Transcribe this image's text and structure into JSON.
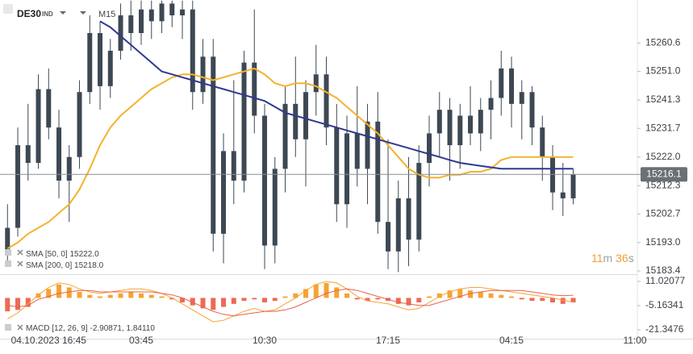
{
  "chart_data": [
    {
      "type": "candlestick",
      "symbol": "DE30",
      "symbol_tag": "IND",
      "timeframe": "M15",
      "categories": [
        null,
        null,
        null,
        null,
        "04.10.2023 16:45",
        null,
        null,
        null,
        null,
        null,
        null,
        null,
        null,
        "03:45",
        null,
        null,
        null,
        null,
        null,
        null,
        null,
        null,
        null,
        null,
        null,
        "10:30",
        null,
        null,
        null,
        null,
        null,
        null,
        null,
        null,
        null,
        null,
        null,
        "17:15",
        null,
        null,
        null,
        null,
        null,
        null,
        null,
        null,
        null,
        null,
        null,
        "04:15",
        null,
        null,
        null,
        null,
        null,
        null,
        null,
        null,
        null,
        null,
        null,
        "11:00"
      ],
      "open": [
        15190,
        15198,
        15226,
        15220,
        15245,
        15232,
        15214,
        15222,
        15244,
        15264,
        15246,
        15258,
        15270,
        15264,
        15272,
        15268,
        15274,
        15270,
        15272,
        15244,
        15256,
        15196,
        15224,
        15214,
        15254,
        15236,
        15192,
        15218,
        15240,
        15228,
        15244,
        15250,
        15232,
        15206,
        15230,
        15218,
        15234,
        15200,
        15190,
        15208,
        15194,
        15220,
        15230,
        15238,
        15226,
        15236,
        15230,
        15238,
        15242,
        15252,
        15240,
        15244,
        15232,
        15222,
        15210,
        15208,
        null,
        null,
        null,
        null,
        null,
        null
      ],
      "high": [
        15206,
        15232,
        15240,
        15250,
        15252,
        15238,
        15226,
        15248,
        15270,
        15268,
        15262,
        15274,
        15275,
        15275,
        15275,
        15275,
        15275,
        15275,
        15275,
        15262,
        15262,
        15230,
        15248,
        15258,
        15272,
        15240,
        15222,
        15246,
        15256,
        15248,
        15260,
        15256,
        15240,
        15236,
        15246,
        15240,
        15244,
        15228,
        15214,
        15222,
        15226,
        15236,
        15244,
        15242,
        15240,
        15246,
        15242,
        15248,
        15258,
        15256,
        15248,
        15246,
        15236,
        15226,
        15220,
        15218,
        null,
        null,
        null,
        null,
        null,
        null
      ],
      "low": [
        15185,
        15195,
        15214,
        15218,
        15228,
        15208,
        15200,
        15218,
        15240,
        15238,
        15242,
        15255,
        15258,
        15260,
        15262,
        15264,
        15266,
        15262,
        15238,
        15240,
        15190,
        15186,
        15206,
        15210,
        15230,
        15184,
        15186,
        15210,
        15222,
        15212,
        15236,
        15226,
        15200,
        15198,
        15212,
        15206,
        15196,
        15184,
        15183,
        15185,
        15190,
        15212,
        15222,
        15214,
        15218,
        15226,
        15224,
        15228,
        15236,
        15232,
        15228,
        15226,
        15214,
        15204,
        15202,
        15206,
        null,
        null,
        null,
        null,
        null,
        null
      ],
      "close": [
        15198,
        15226,
        15220,
        15245,
        15232,
        15214,
        15222,
        15244,
        15264,
        15246,
        15258,
        15270,
        15264,
        15272,
        15268,
        15274,
        15270,
        15272,
        15244,
        15256,
        15196,
        15224,
        15214,
        15254,
        15236,
        15192,
        15218,
        15240,
        15228,
        15244,
        15250,
        15232,
        15206,
        15230,
        15218,
        15234,
        15200,
        15190,
        15208,
        15194,
        15220,
        15230,
        15238,
        15226,
        15236,
        15230,
        15238,
        15242,
        15252,
        15240,
        15244,
        15232,
        15222,
        15210,
        15208,
        15216.1,
        null,
        null,
        null,
        null,
        null,
        null
      ],
      "color": "#3d4853",
      "series": [
        {
          "name": "SMA [50, 0]",
          "last_label": "15222.0",
          "color": "#f2b32e",
          "values": [
            15191,
            15193,
            15196,
            15198,
            15200,
            15203,
            15206,
            15211,
            15218,
            15226,
            15232,
            15236,
            15239,
            15242,
            15245,
            15247,
            15249,
            15250,
            15250,
            15249,
            15248,
            15249,
            15250,
            15251,
            15252,
            15250,
            15247,
            15246,
            15247,
            15247,
            15246,
            15244,
            15242,
            15239,
            15236,
            15233,
            15230,
            15226,
            15222,
            15218,
            15216,
            15215,
            15215,
            15216,
            15216,
            15217,
            15217,
            15218,
            15221,
            15222,
            15222,
            15222,
            15222,
            15222,
            15222,
            15222,
            null,
            null,
            null,
            null,
            null,
            null
          ]
        },
        {
          "name": "SMA [200, 0]",
          "last_label": "15218.0",
          "color": "#2f3990",
          "values": [
            null,
            null,
            null,
            null,
            null,
            null,
            null,
            null,
            null,
            15268,
            15266,
            15263,
            15260,
            15257,
            15254,
            15251,
            15250,
            15249,
            15248,
            15247,
            15246,
            15245,
            15244,
            15243,
            15242,
            15241,
            15239,
            15237,
            15236,
            15235,
            15234,
            15233,
            15232,
            15231,
            15230,
            15229,
            15228,
            15227,
            15226,
            15225,
            15224,
            15223,
            15222,
            15221,
            15220,
            15219.5,
            15219,
            15218.5,
            15218,
            15218,
            15218,
            15218,
            15218,
            15218,
            15218,
            15218,
            null,
            null,
            null,
            null,
            null,
            null
          ]
        }
      ],
      "current_price": 15216.1,
      "ylim": [
        15182.3,
        15275.2
      ],
      "yticks": [
        {
          "value": 15183.4,
          "label": "15183.4"
        },
        {
          "value": 15193,
          "label": "15193.0"
        },
        15202.7,
        15212.3,
        {
          "value": 15222,
          "label": "15222.0"
        },
        15231.7,
        15241.3,
        {
          "value": 15251,
          "label": "15251.0"
        },
        15260.6
      ],
      "countdown": {
        "minutes": "11",
        "minutes_unit": "m",
        "seconds": "36",
        "seconds_unit": "s"
      }
    },
    {
      "type": "macd",
      "title": "MACD [12, 26, 9]",
      "legend_values": "-2.90871, 1.84110",
      "colors": {
        "positive": "#f5a331",
        "negative": "#ec6a55"
      },
      "histogram": [
        -9,
        -8,
        -6,
        3,
        6,
        9,
        7,
        4,
        2,
        1,
        2,
        3,
        4,
        3,
        2,
        1,
        -1,
        -3,
        -5,
        -7,
        -8,
        -6,
        -4,
        -2,
        -1,
        -3,
        -2,
        1,
        3,
        6,
        9,
        10,
        7,
        3,
        -1,
        -2,
        -1,
        -2,
        -4,
        -5,
        -3,
        1,
        3,
        5,
        6,
        5,
        4,
        3,
        2,
        1,
        -1,
        -2,
        -2,
        -3,
        -4,
        -3,
        null,
        null,
        null,
        null,
        null,
        null
      ],
      "series": [
        {
          "name": "MACD",
          "color": "#f5a331",
          "values": [
            -14,
            -10,
            -4,
            2,
            7,
            10,
            9,
            6,
            4,
            3,
            4,
            5,
            6,
            6,
            5,
            3,
            0,
            -4,
            -8,
            -12,
            -16,
            -15,
            -12,
            -9,
            -7,
            -9,
            -8,
            -4,
            0,
            5,
            9,
            11,
            10,
            6,
            1,
            -2,
            -3,
            -4,
            -6,
            -8,
            -7,
            -3,
            1,
            4,
            6,
            7,
            7,
            6,
            5,
            4,
            3,
            2,
            1,
            0,
            -1.5,
            -2.9,
            null,
            null,
            null,
            null,
            null,
            null
          ]
        },
        {
          "name": "Signal",
          "color": "#e8604c",
          "values": [
            -5,
            -6,
            -5,
            -1,
            1,
            3,
            4,
            5,
            5,
            4,
            4,
            4,
            4,
            4,
            4,
            3,
            2,
            0,
            -3,
            -6,
            -9,
            -11,
            -12,
            -11,
            -10,
            -9,
            -9,
            -8,
            -6,
            -3,
            0,
            3,
            5,
            6,
            5,
            3,
            1,
            -1,
            -3,
            -4,
            -5,
            -5,
            -3,
            -1,
            1,
            3,
            4,
            5,
            5,
            5,
            5,
            4,
            3,
            2,
            1.5,
            1.8,
            null,
            null,
            null,
            null,
            null,
            null
          ]
        }
      ],
      "ylim": [
        -27.28,
        14.8
      ],
      "yticks": [
        -21.3476,
        -5.16341,
        11.02077
      ]
    }
  ]
}
